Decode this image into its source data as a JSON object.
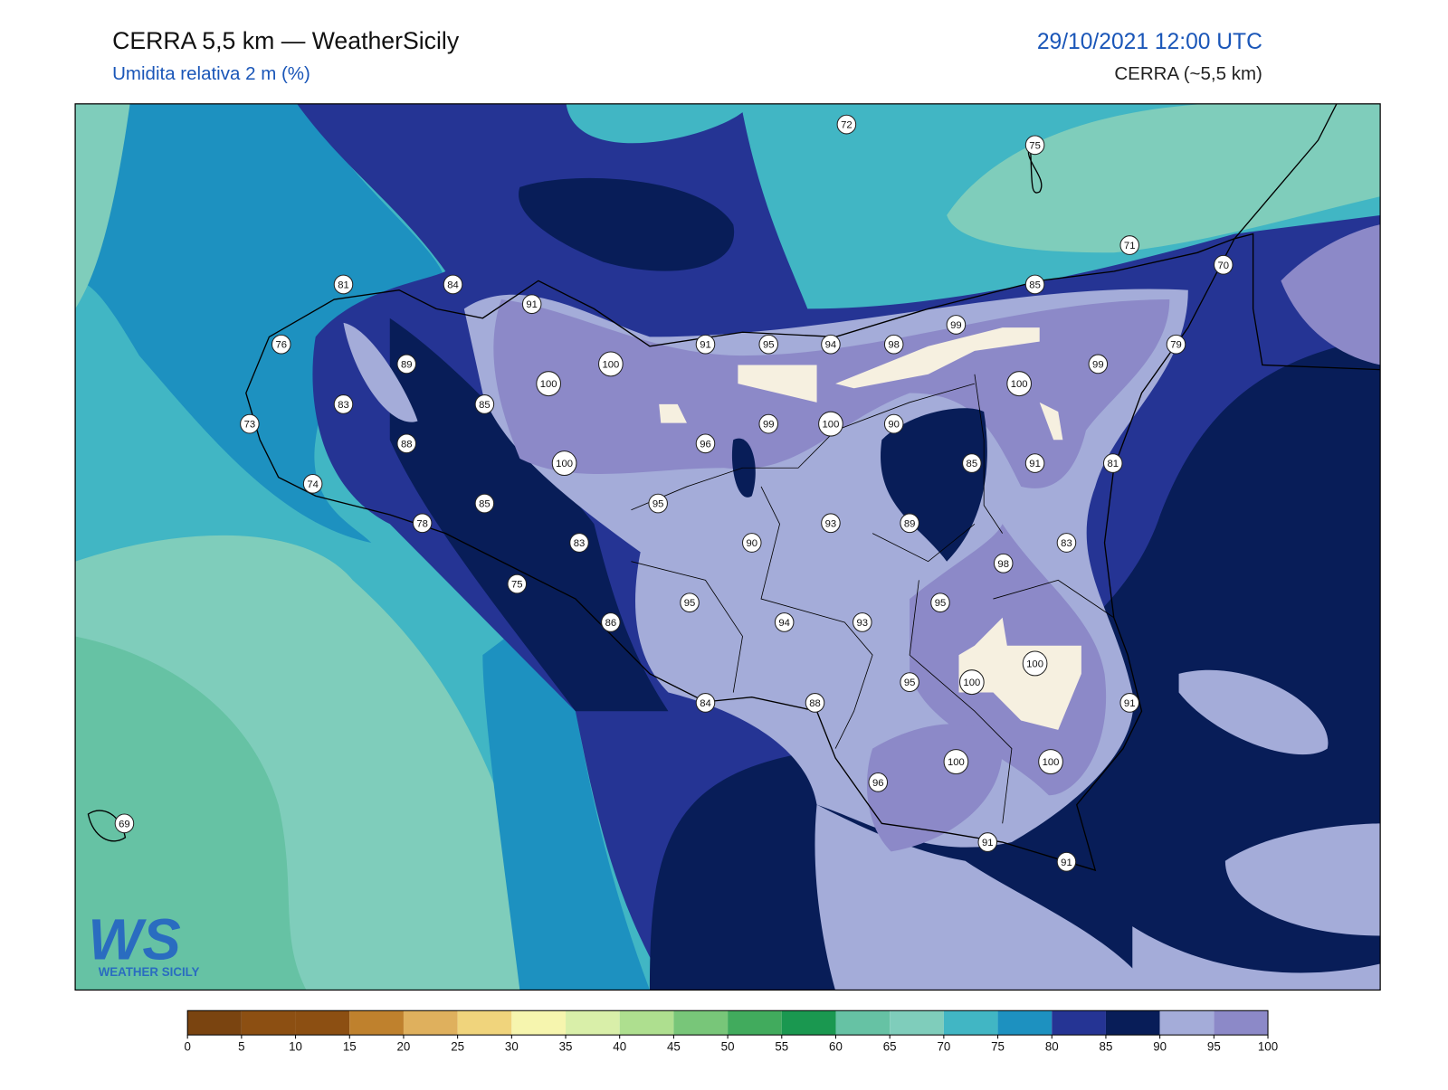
{
  "header": {
    "title": "CERRA 5,5 km — WeatherSicily",
    "subtitle": "Umidita relativa 2 m (%)",
    "datetime": "29/10/2021 12:00 UTC",
    "model": "CERRA (~5,5 km)"
  },
  "stations": [
    72,
    75,
    71,
    70,
    81,
    84,
    91,
    85,
    99,
    76,
    91,
    95,
    94,
    98,
    99,
    79,
    89,
    100,
    100,
    100,
    83,
    85,
    73,
    99,
    100,
    90,
    96,
    88,
    100,
    85,
    91,
    81,
    74,
    95,
    85,
    78,
    93,
    89,
    90,
    83,
    83,
    98,
    75,
    95,
    95,
    86,
    94,
    93,
    100,
    100,
    95,
    84,
    88,
    91,
    100,
    100,
    96,
    69,
    91,
    91
  ],
  "colorbar": {
    "levels": [
      0,
      5,
      10,
      15,
      20,
      25,
      30,
      35,
      40,
      45,
      50,
      55,
      60,
      65,
      70,
      75,
      80,
      85,
      90,
      95,
      100
    ],
    "colors": [
      "#7a4410",
      "#8c4f12",
      "#8c4f12",
      "#bf812d",
      "#dfb05d",
      "#f0d47c",
      "#f6f5ae",
      "#d9efa9",
      "#aedf8f",
      "#78c679",
      "#41ab5d",
      "#1a9850",
      "#66c2a4",
      "#7fcdbb",
      "#41b6c4",
      "#1d91c0",
      "#253494",
      "#081d58",
      "#a4acd9",
      "#8c89c8"
    ]
  },
  "logo": {
    "initials": "WS",
    "name": "WEATHER SICILY"
  }
}
